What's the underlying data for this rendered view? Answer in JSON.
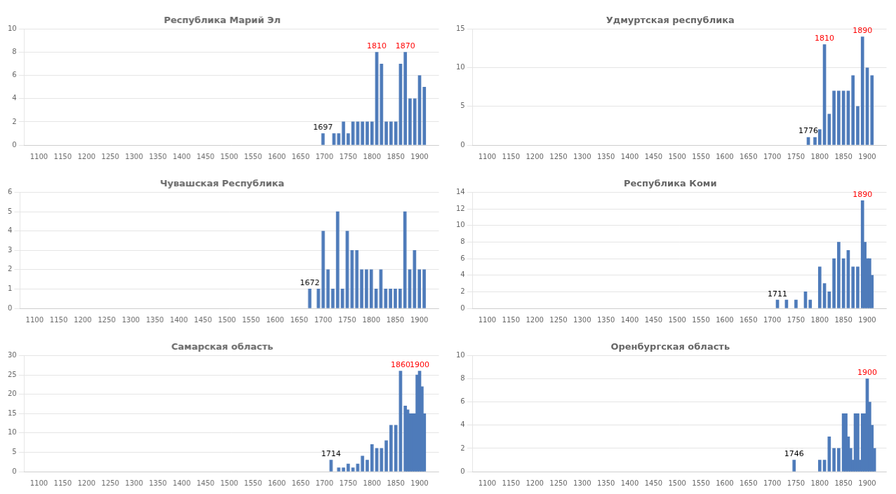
{
  "chart_data": [
    {
      "type": "bar",
      "title": "Республика Марий Эл",
      "x": [
        1697,
        1720,
        1730,
        1740,
        1750,
        1760,
        1770,
        1780,
        1790,
        1800,
        1810,
        1820,
        1830,
        1840,
        1850,
        1860,
        1870,
        1880,
        1890,
        1900,
        1910
      ],
      "values": [
        1,
        1,
        1,
        2,
        1,
        2,
        2,
        2,
        2,
        2,
        8,
        7,
        2,
        2,
        2,
        7,
        8,
        4,
        4,
        6,
        5
      ],
      "color": "#4e7bba",
      "xlim": [
        1095,
        1915
      ],
      "xticks": [
        1100,
        1150,
        1200,
        1250,
        1300,
        1350,
        1400,
        1450,
        1500,
        1550,
        1600,
        1650,
        1700,
        1750,
        1800,
        1850,
        1900
      ],
      "ylim": [
        0,
        10
      ],
      "yticks": [
        0,
        2,
        4,
        6,
        8,
        10
      ],
      "grid": true,
      "annotations": [
        {
          "text": "1697",
          "x": 1697,
          "color": "black"
        },
        {
          "text": "1810",
          "x": 1810,
          "color": "red"
        },
        {
          "text": "1870",
          "x": 1870,
          "color": "red"
        }
      ]
    },
    {
      "type": "bar",
      "title": "Удмуртская республика",
      "x": [
        1776,
        1790,
        1800,
        1810,
        1820,
        1830,
        1840,
        1850,
        1860,
        1870,
        1880,
        1890,
        1900,
        1910
      ],
      "values": [
        1,
        1,
        2,
        13,
        4,
        7,
        7,
        7,
        7,
        9,
        5,
        14,
        10,
        9
      ],
      "color": "#4e7bba",
      "xlim": [
        1095,
        1915
      ],
      "xticks": [
        1100,
        1150,
        1200,
        1250,
        1300,
        1350,
        1400,
        1450,
        1500,
        1550,
        1600,
        1650,
        1700,
        1750,
        1800,
        1850,
        1900
      ],
      "ylim": [
        0,
        15
      ],
      "yticks": [
        0,
        5,
        10,
        15
      ],
      "grid": true,
      "annotations": [
        {
          "text": "1776",
          "x": 1776,
          "color": "black"
        },
        {
          "text": "1810",
          "x": 1810,
          "color": "red"
        },
        {
          "text": "1890",
          "x": 1890,
          "color": "red"
        }
      ]
    },
    {
      "type": "bar",
      "title": "Чувашская Республика",
      "x": [
        1672,
        1690,
        1700,
        1710,
        1720,
        1730,
        1740,
        1750,
        1760,
        1770,
        1780,
        1790,
        1800,
        1810,
        1820,
        1830,
        1840,
        1850,
        1860,
        1870,
        1880,
        1890,
        1900,
        1910
      ],
      "values": [
        1,
        1,
        4,
        2,
        1,
        5,
        1,
        4,
        3,
        3,
        2,
        2,
        2,
        1,
        2,
        1,
        1,
        1,
        1,
        5,
        2,
        3,
        2,
        2
      ],
      "color": "#4e7bba",
      "xlim": [
        1095,
        1915
      ],
      "xticks": [
        1100,
        1150,
        1200,
        1250,
        1300,
        1350,
        1400,
        1450,
        1500,
        1550,
        1600,
        1650,
        1700,
        1750,
        1800,
        1850,
        1900
      ],
      "ylim": [
        0,
        6
      ],
      "yticks": [
        0,
        1,
        2,
        3,
        4,
        5,
        6
      ],
      "grid": true,
      "annotations": [
        {
          "text": "1672",
          "x": 1672,
          "color": "black"
        }
      ]
    },
    {
      "type": "bar",
      "title": "Республика Коми",
      "x": [
        1711,
        1730,
        1750,
        1770,
        1780,
        1800,
        1810,
        1820,
        1830,
        1840,
        1850,
        1860,
        1870,
        1880,
        1890,
        1895,
        1900,
        1905,
        1910
      ],
      "values": [
        1,
        1,
        1,
        2,
        1,
        5,
        3,
        2,
        6,
        8,
        6,
        7,
        5,
        5,
        13,
        8,
        6,
        6,
        4
      ],
      "color": "#4e7bba",
      "xlim": [
        1095,
        1915
      ],
      "xticks": [
        1100,
        1150,
        1200,
        1250,
        1300,
        1350,
        1400,
        1450,
        1500,
        1550,
        1600,
        1650,
        1700,
        1750,
        1800,
        1850,
        1900
      ],
      "ylim": [
        0,
        14
      ],
      "yticks": [
        0,
        2,
        4,
        6,
        8,
        10,
        12,
        14
      ],
      "grid": true,
      "annotations": [
        {
          "text": "1711",
          "x": 1711,
          "color": "black"
        },
        {
          "text": "1890",
          "x": 1890,
          "color": "red"
        }
      ]
    },
    {
      "type": "bar",
      "title": "Самарская область",
      "x": [
        1714,
        1730,
        1740,
        1750,
        1760,
        1770,
        1780,
        1790,
        1800,
        1810,
        1820,
        1830,
        1840,
        1850,
        1860,
        1870,
        1875,
        1880,
        1885,
        1890,
        1895,
        1900,
        1905,
        1910
      ],
      "values": [
        3,
        1,
        1,
        2,
        1,
        2,
        4,
        3,
        7,
        6,
        6,
        8,
        12,
        12,
        26,
        17,
        16,
        15,
        15,
        15,
        25,
        26,
        22,
        15
      ],
      "color": "#4e7bba",
      "xlim": [
        1095,
        1915
      ],
      "xticks": [
        1100,
        1150,
        1200,
        1250,
        1300,
        1350,
        1400,
        1450,
        1500,
        1550,
        1600,
        1650,
        1700,
        1750,
        1800,
        1850,
        1900
      ],
      "ylim": [
        0,
        30
      ],
      "yticks": [
        0,
        5,
        10,
        15,
        20,
        25,
        30
      ],
      "grid": true,
      "annotations": [
        {
          "text": "1714",
          "x": 1714,
          "color": "black"
        },
        {
          "text": "1860",
          "x": 1860,
          "color": "red"
        },
        {
          "text": "1900",
          "x": 1900,
          "color": "red"
        }
      ]
    },
    {
      "type": "bar",
      "title": "Оренбургская область",
      "x": [
        1746,
        1800,
        1810,
        1820,
        1830,
        1840,
        1850,
        1855,
        1860,
        1865,
        1870,
        1875,
        1880,
        1885,
        1890,
        1895,
        1900,
        1905,
        1910,
        1915
      ],
      "values": [
        1,
        1,
        1,
        3,
        2,
        2,
        5,
        5,
        3,
        2,
        1,
        5,
        5,
        1,
        5,
        5,
        8,
        6,
        4,
        2
      ],
      "color": "#4e7bba",
      "xlim": [
        1095,
        1915
      ],
      "xticks": [
        1100,
        1150,
        1200,
        1250,
        1300,
        1350,
        1400,
        1450,
        1500,
        1550,
        1600,
        1650,
        1700,
        1750,
        1800,
        1850,
        1900
      ],
      "ylim": [
        0,
        10
      ],
      "yticks": [
        0,
        2,
        4,
        6,
        8,
        10
      ],
      "grid": true,
      "annotations": [
        {
          "text": "1746",
          "x": 1746,
          "color": "black"
        },
        {
          "text": "1900",
          "x": 1900,
          "color": "red"
        }
      ]
    }
  ]
}
